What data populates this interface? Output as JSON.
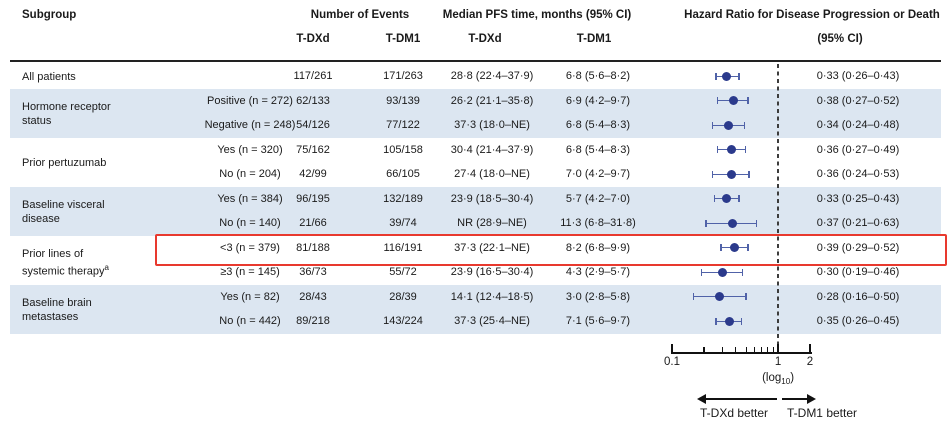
{
  "header": {
    "subgroup": "Subgroup",
    "events": {
      "title": "Number of Events",
      "col1": "T-DXd",
      "col2": "T-DM1"
    },
    "pfs": {
      "title": "Median PFS time, months (95% CI)",
      "col1": "T-DXd",
      "col2": "T-DM1"
    },
    "hr": {
      "title": "Hazard Ratio for Disease Progression or Death",
      "subtitle": "(95% CI)"
    }
  },
  "colors": {
    "dot": "#2b3a8c",
    "whisker": "#5062a8",
    "band": "#dce6f1",
    "highlight": "#e8392e",
    "dashed_line": "#3c3c3c",
    "axis": "#111111",
    "text": "#1a1a1a"
  },
  "chart_data": {
    "type": "forest",
    "title": "Hazard Ratio for Disease Progression or Death (95% CI)",
    "x_axis": {
      "scale": "log10",
      "min": 0.1,
      "max": 2,
      "major_ticks": [
        0.1,
        1,
        2
      ],
      "major_tick_labels": [
        "0.1",
        "1",
        "2"
      ],
      "minor_ticks": [
        0.2,
        0.3,
        0.4,
        0.5,
        0.6,
        0.7,
        0.8,
        0.9
      ],
      "reference_line": 1,
      "note_pre": "(log",
      "note_sub": "10",
      "note_post": ")"
    },
    "legend": {
      "left_arrow": "T-DXd better",
      "right_arrow": "T-DM1 better"
    },
    "groups": [
      {
        "label_lines": [
          "All patients"
        ],
        "band": false,
        "rows": [
          {
            "level": "",
            "events_tdxd": "117/261",
            "events_tdm1": "171/263",
            "pfs_tdxd": "28·8 (22·4–37·9)",
            "pfs_tdm1": "6·8 (5·6–8·2)",
            "hr": 0.33,
            "ci_low": 0.26,
            "ci_high": 0.43,
            "hr_text": "0·33 (0·26–0·43)",
            "highlight": false
          }
        ]
      },
      {
        "label_lines": [
          "Hormone receptor",
          "status"
        ],
        "band": true,
        "rows": [
          {
            "level": "Positive (n = 272)",
            "events_tdxd": "62/133",
            "events_tdm1": "93/139",
            "pfs_tdxd": "26·2 (21·1–35·8)",
            "pfs_tdm1": "6·9 (4·2–9·7)",
            "hr": 0.38,
            "ci_low": 0.27,
            "ci_high": 0.52,
            "hr_text": "0·38 (0·27–0·52)",
            "highlight": false
          },
          {
            "level": "Negative (n = 248)",
            "events_tdxd": "54/126",
            "events_tdm1": "77/122",
            "pfs_tdxd": "37·3 (18·0–NE)",
            "pfs_tdm1": "6·8 (5·4–8·3)",
            "hr": 0.34,
            "ci_low": 0.24,
            "ci_high": 0.48,
            "hr_text": "0·34 (0·24–0·48)",
            "highlight": false
          }
        ]
      },
      {
        "label_lines": [
          "Prior pertuzumab"
        ],
        "band": false,
        "rows": [
          {
            "level": "Yes (n = 320)",
            "events_tdxd": "75/162",
            "events_tdm1": "105/158",
            "pfs_tdxd": "30·4 (21·4–37·9)",
            "pfs_tdm1": "6·8 (5·4–8·3)",
            "hr": 0.36,
            "ci_low": 0.27,
            "ci_high": 0.49,
            "hr_text": "0·36 (0·27–0·49)",
            "highlight": false
          },
          {
            "level": "No (n = 204)",
            "events_tdxd": "42/99",
            "events_tdm1": "66/105",
            "pfs_tdxd": "27·4 (18·0–NE)",
            "pfs_tdm1": "7·0 (4·2–9·7)",
            "hr": 0.36,
            "ci_low": 0.24,
            "ci_high": 0.53,
            "hr_text": "0·36 (0·24–0·53)",
            "highlight": false
          }
        ]
      },
      {
        "label_lines": [
          "Baseline visceral",
          "disease"
        ],
        "band": true,
        "rows": [
          {
            "level": "Yes (n = 384)",
            "events_tdxd": "96/195",
            "events_tdm1": "132/189",
            "pfs_tdxd": "23·9 (18·5–30·4)",
            "pfs_tdm1": "5·7 (4·2–7·0)",
            "hr": 0.33,
            "ci_low": 0.25,
            "ci_high": 0.43,
            "hr_text": "0·33 (0·25–0·43)",
            "highlight": false
          },
          {
            "level": "No (n = 140)",
            "events_tdxd": "21/66",
            "events_tdm1": "39/74",
            "pfs_tdxd": "NR (28·9–NE)",
            "pfs_tdm1": "11·3 (6·8–31·8)",
            "hr": 0.37,
            "ci_low": 0.21,
            "ci_high": 0.63,
            "hr_text": "0·37 (0·21–0·63)",
            "highlight": false
          }
        ]
      },
      {
        "label_lines": [
          "Prior lines of",
          "systemic therapy"
        ],
        "footnote": "a",
        "band": false,
        "rows": [
          {
            "level": "<3 (n = 379)",
            "events_tdxd": "81/188",
            "events_tdm1": "116/191",
            "pfs_tdxd": "37·3 (22·1–NE)",
            "pfs_tdm1": "8·2 (6·8–9·9)",
            "hr": 0.39,
            "ci_low": 0.29,
            "ci_high": 0.52,
            "hr_text": "0·39 (0·29–0·52)",
            "highlight": true
          },
          {
            "level": "≥3 (n = 145)",
            "events_tdxd": "36/73",
            "events_tdm1": "55/72",
            "pfs_tdxd": "23·9 (16·5–30·4)",
            "pfs_tdm1": "4·3 (2·9–5·7)",
            "hr": 0.3,
            "ci_low": 0.19,
            "ci_high": 0.46,
            "hr_text": "0·30 (0·19–0·46)",
            "highlight": false
          }
        ]
      },
      {
        "label_lines": [
          "Baseline brain",
          "metastases"
        ],
        "band": true,
        "rows": [
          {
            "level": "Yes (n = 82)",
            "events_tdxd": "28/43",
            "events_tdm1": "28/39",
            "pfs_tdxd": "14·1 (12·4–18·5)",
            "pfs_tdm1": "3·0 (2·8–5·8)",
            "hr": 0.28,
            "ci_low": 0.16,
            "ci_high": 0.5,
            "hr_text": "0·28 (0·16–0·50)",
            "highlight": false
          },
          {
            "level": "No (n = 442)",
            "events_tdxd": "89/218",
            "events_tdm1": "143/224",
            "pfs_tdxd": "37·3 (25·4–NE)",
            "pfs_tdm1": "7·1 (5·6–9·7)",
            "hr": 0.35,
            "ci_low": 0.26,
            "ci_high": 0.45,
            "hr_text": "0·35 (0·26–0·45)",
            "highlight": false
          }
        ]
      }
    ]
  }
}
